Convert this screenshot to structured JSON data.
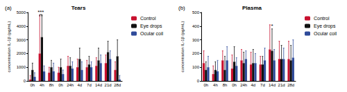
{
  "chart_data": [
    {
      "type": "bar",
      "label": "(a)",
      "title": "Tears",
      "y_label": "concentration IL-1β (pg/mL)",
      "categories": [
        "0h",
        "4h",
        "8h",
        "0h",
        "24h",
        "4d",
        "7d",
        "14d",
        "21d",
        "28d"
      ],
      "series": [
        {
          "name": "Control",
          "color": "#c8102e",
          "values": [
            100,
            2000,
            600,
            600,
            1100,
            1000,
            1000,
            1100,
            1300,
            800
          ],
          "errors": [
            300,
            2800,
            400,
            400,
            700,
            600,
            500,
            600,
            600,
            600
          ]
        },
        {
          "name": "Eye drops",
          "color": "#111111",
          "values": [
            800,
            3200,
            1000,
            1000,
            1100,
            1600,
            1200,
            1500,
            2100,
            1800
          ],
          "errors": [
            500,
            1600,
            500,
            600,
            600,
            800,
            600,
            900,
            800,
            1200
          ]
        },
        {
          "name": "Ocular coil",
          "color": "#2f4b9a",
          "values": [
            300,
            700,
            700,
            500,
            900,
            800,
            1000,
            1300,
            1600,
            100
          ],
          "errors": [
            300,
            400,
            600,
            300,
            500,
            600,
            400,
            600,
            600,
            300
          ]
        }
      ],
      "annotations": [
        {
          "text": "***",
          "x": 1,
          "y": 4850,
          "between": [
            "Control",
            "Eye drops"
          ]
        }
      ],
      "ylim": [
        0,
        5000
      ],
      "yticks": [
        0,
        1000,
        2000,
        3000,
        4000,
        5000
      ],
      "grid": false,
      "legend": "right"
    },
    {
      "type": "bar",
      "label": "(b)",
      "title": "Plasma",
      "y_label": "concentration IL-1β (pg/mL)",
      "categories": [
        "0h",
        "4h",
        "8h",
        "0h",
        "24h",
        "4d",
        "7d",
        "14d",
        "21d",
        "28d"
      ],
      "series": [
        {
          "name": "Control",
          "color": "#c8102e",
          "values": [
            130,
            50,
            150,
            90,
            150,
            120,
            120,
            230,
            160,
            160
          ],
          "errors": [
            90,
            60,
            70,
            100,
            80,
            90,
            60,
            180,
            130,
            130
          ]
        },
        {
          "name": "Eye drops",
          "color": "#111111",
          "values": [
            80,
            80,
            80,
            140,
            130,
            130,
            120,
            220,
            160,
            150
          ],
          "errors": [
            60,
            60,
            100,
            110,
            80,
            100,
            60,
            160,
            100,
            110
          ]
        },
        {
          "name": "Ocular coil",
          "color": "#2f4b9a",
          "values": [
            100,
            70,
            150,
            110,
            160,
            130,
            150,
            150,
            160,
            170
          ],
          "errors": [
            80,
            80,
            100,
            60,
            60,
            70,
            90,
            80,
            80,
            130
          ]
        }
      ],
      "annotations": [
        {
          "text": "*",
          "x": 7,
          "y": 385,
          "between": [
            "Eye drops"
          ]
        }
      ],
      "ylim": [
        0,
        500
      ],
      "yticks": [
        0,
        100,
        200,
        300,
        400,
        500
      ],
      "grid": false,
      "legend": "right"
    }
  ]
}
